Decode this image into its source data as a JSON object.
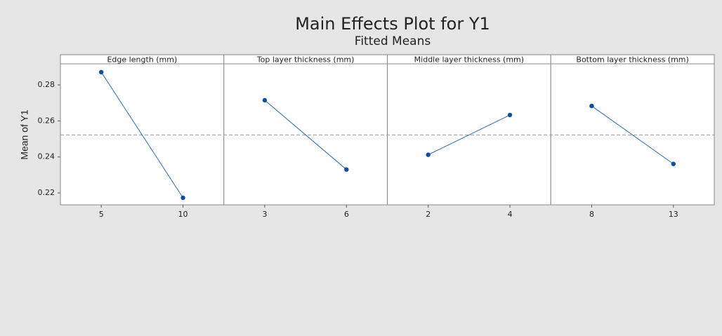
{
  "chart_data": {
    "type": "line",
    "title": "Main Effects Plot for Y1",
    "subtitle": "Fitted Means",
    "ylabel": "Mean of Y1",
    "ylim": [
      0.2134,
      0.2917
    ],
    "yticks": [
      0.22,
      0.24,
      0.26,
      0.28
    ],
    "reference_line": 0.2522,
    "color": "#2f6db5",
    "marker_color": "#0b4f9c",
    "panels": [
      {
        "title": "Edge length (mm)",
        "categories": [
          "5",
          "10"
        ],
        "values": [
          0.2871,
          0.2173
        ]
      },
      {
        "title": "Top layer thickness (mm)",
        "categories": [
          "3",
          "6"
        ],
        "values": [
          0.2715,
          0.233
        ]
      },
      {
        "title": "Middle layer thickness (mm)",
        "categories": [
          "2",
          "4"
        ],
        "values": [
          0.2412,
          0.2633
        ]
      },
      {
        "title": "Bottom layer thickness (mm)",
        "categories": [
          "8",
          "13"
        ],
        "values": [
          0.2683,
          0.2361
        ]
      }
    ]
  }
}
